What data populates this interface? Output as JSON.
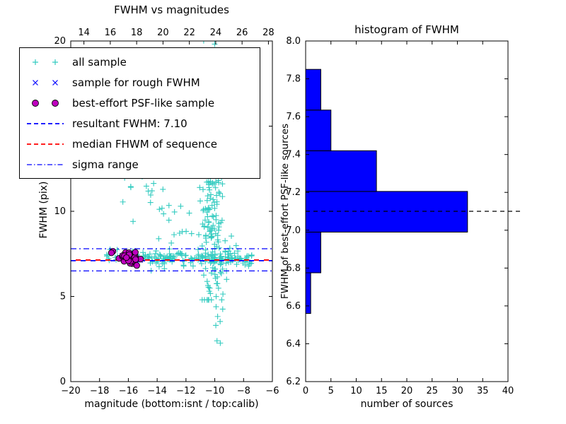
{
  "figure_bg": "#ffffff",
  "legend": {
    "items": [
      {
        "label": "all sample",
        "marker": "plus",
        "color": "#33cbc0"
      },
      {
        "label": "sample for rough FWHM",
        "marker": "x",
        "color": "#0000ff"
      },
      {
        "label": "best-effort PSF-like sample",
        "marker": "circle",
        "color": "#bf00bf",
        "edge": "#000000"
      },
      {
        "label": "resultant FWHM: 7.10",
        "marker": "dashed",
        "color": "#0000ff"
      },
      {
        "label": "median FHWM of sequence",
        "marker": "dashed",
        "color": "#ff0000"
      },
      {
        "label": "sigma range",
        "marker": "dashdot",
        "color": "#0000ff"
      }
    ]
  },
  "chart_data": [
    {
      "type": "scatter",
      "title": "FWHM vs magnitudes",
      "xlabel": "magnitude (bottom:isnt / top:calib)",
      "ylabel": "FWHM (pix)",
      "xlim": [
        -20,
        -6
      ],
      "ylim": [
        0,
        20
      ],
      "xticks": [
        -20,
        -18,
        -16,
        -14,
        -12,
        -10,
        -8,
        -6
      ],
      "yticks": [
        0,
        5,
        10,
        15,
        20
      ],
      "top_axis": {
        "ticks": [
          14,
          16,
          18,
          20,
          22,
          24,
          26,
          28
        ],
        "lim": [
          13.0,
          28.3
        ]
      },
      "hlines": [
        {
          "y": 7.1,
          "style": "dashed",
          "color": "#0000ff",
          "width": 1.8,
          "offset": 0,
          "label": "resultant FWHM: 7.10"
        },
        {
          "y": 7.14,
          "style": "dashed",
          "color": "#ff0000",
          "width": 1.8,
          "offset": 7,
          "label": "median FHWM of sequence"
        },
        {
          "y": 6.5,
          "style": "dashdot",
          "color": "#0000ff",
          "width": 1.2,
          "offset": 0,
          "label": "sigma range"
        },
        {
          "y": 7.8,
          "style": "dashdot",
          "color": "#0000ff",
          "width": 1.2,
          "offset": 0,
          "label": "sigma range"
        }
      ],
      "series": [
        {
          "name": "all sample",
          "marker": "plus",
          "color": "#33cbc0",
          "clusters": [
            {
              "n": 40,
              "x": {
                "d": "u",
                "a": -17.5,
                "b": -14.0
              },
              "y": {
                "d": "n",
                "m": 7.3,
                "s": 0.22
              }
            },
            {
              "n": 115,
              "x": {
                "d": "u",
                "a": -14.0,
                "b": -7.4
              },
              "y": {
                "d": "n",
                "m": 7.25,
                "s": 0.2
              }
            },
            {
              "n": 25,
              "x": {
                "d": "u",
                "a": -14.5,
                "b": -8.0
              },
              "y": {
                "d": "n",
                "m": 7.3,
                "s": 0.55
              }
            },
            {
              "n": 150,
              "x": {
                "d": "n",
                "m": -10.15,
                "s": 0.45
              },
              "y": {
                "d": "n",
                "m": 9.6,
                "s": 2.7,
                "min": 4.8,
                "max": 20.3
              }
            },
            {
              "n": 22,
              "x": {
                "d": "n",
                "m": -10.35,
                "s": 0.55
              },
              "y": {
                "d": "u",
                "a": 14.5,
                "b": 20.2
              }
            },
            {
              "n": 18,
              "x": {
                "d": "u",
                "a": -16.4,
                "b": -12.7
              },
              "y": {
                "d": "u",
                "a": 9.4,
                "b": 12.3
              }
            },
            {
              "n": 10,
              "x": {
                "d": "u",
                "a": -13.5,
                "b": -11.5
              },
              "y": {
                "d": "u",
                "a": 8.3,
                "b": 10.4
              }
            },
            {
              "n": 7,
              "x": {
                "d": "n",
                "m": -9.6,
                "s": 0.35
              },
              "y": {
                "d": "u",
                "a": 2.2,
                "b": 4.7
              }
            }
          ]
        },
        {
          "name": "sample for rough FWHM",
          "marker": "x",
          "color": "#0000ff",
          "clusters": [
            {
              "n": 12,
              "x": {
                "d": "n",
                "m": -15.85,
                "s": 0.3
              },
              "y": {
                "d": "n",
                "m": 7.2,
                "s": 0.13
              }
            }
          ]
        },
        {
          "name": "best-effort PSF-like sample",
          "marker": "circle",
          "color": "#bf00bf",
          "edge": "#000000",
          "clusters": [
            {
              "n": 30,
              "x": {
                "d": "n",
                "m": -15.9,
                "s": 0.33,
                "min": -16.65,
                "max": -15.15
              },
              "y": {
                "d": "n",
                "m": 7.18,
                "s": 0.2,
                "min": 6.78,
                "max": 7.62
              }
            },
            {
              "n": 2,
              "x": {
                "d": "u",
                "a": -17.3,
                "b": -17.05
              },
              "y": {
                "d": "u",
                "a": 7.5,
                "b": 7.65
              }
            }
          ]
        }
      ]
    },
    {
      "type": "bar-horizontal",
      "title": "histogram of FWHM",
      "xlabel": "number of sources",
      "ylabel": "FWHM of best-effort PSF-like sources",
      "xlim": [
        0,
        40
      ],
      "ylim": [
        6.2,
        8.0
      ],
      "xticks": [
        0,
        5,
        10,
        15,
        20,
        25,
        30,
        35,
        40
      ],
      "yticks": [
        6.2,
        6.4,
        6.6,
        6.8,
        7.0,
        7.2,
        7.4,
        7.6,
        7.8,
        8.0
      ],
      "bin_edges": [
        6.56,
        6.775,
        6.99,
        7.205,
        7.42,
        7.635,
        7.85
      ],
      "counts": [
        1,
        3,
        32,
        14,
        5,
        3
      ],
      "bar_color": "#0000ff",
      "bar_edge": "#000000",
      "dashed_line": {
        "y": 7.1,
        "color": "#000000",
        "style": "dashed"
      }
    }
  ]
}
